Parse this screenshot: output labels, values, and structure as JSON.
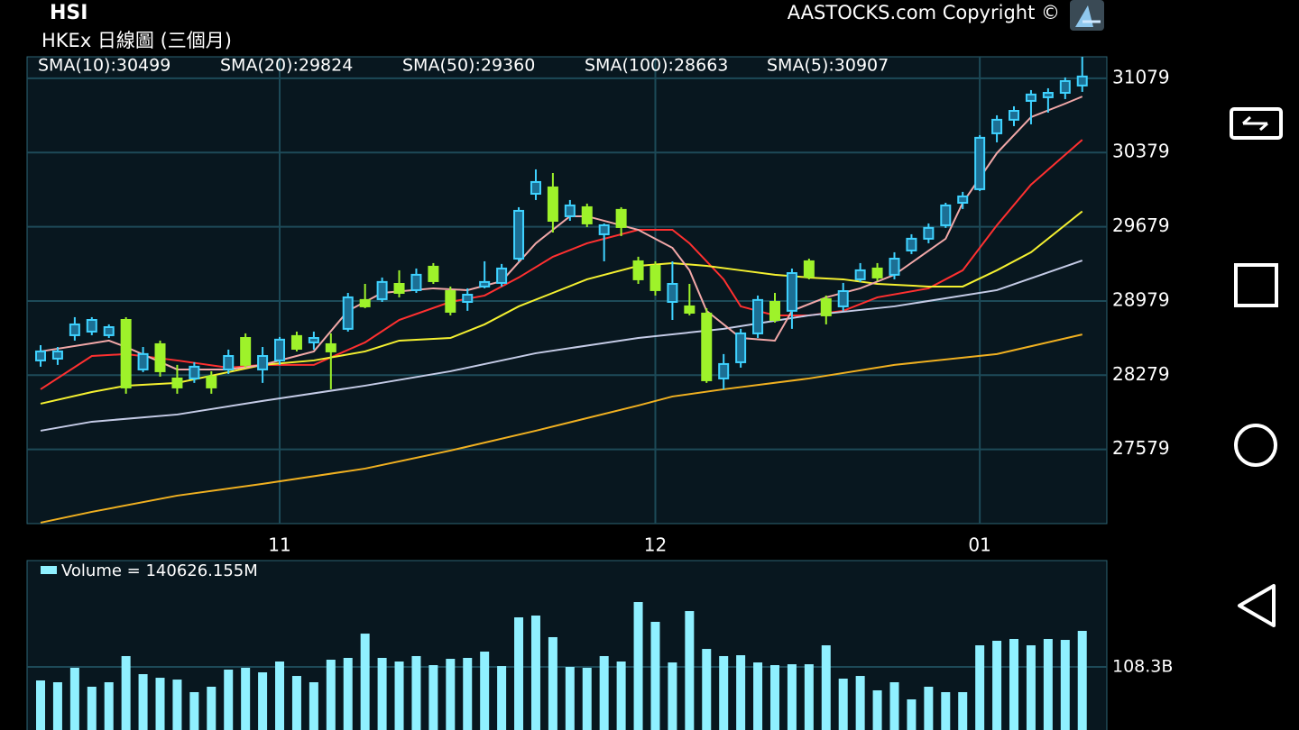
{
  "header": {
    "title": "HSI",
    "subtitle": "HKEx 日線圖 (三個月)",
    "copyright": "AASTOCKS.com Copyright ©"
  },
  "chart_data": [
    {
      "type": "candlestick",
      "categories": [
        null,
        null,
        null,
        null,
        null,
        null,
        null,
        null,
        null,
        null,
        null,
        null,
        null,
        null,
        "11",
        null,
        null,
        null,
        null,
        null,
        null,
        null,
        null,
        null,
        null,
        null,
        null,
        null,
        null,
        null,
        null,
        null,
        null,
        null,
        null,
        null,
        "12",
        null,
        null,
        null,
        null,
        null,
        null,
        null,
        null,
        null,
        null,
        null,
        null,
        null,
        null,
        null,
        null,
        null,
        null,
        "01",
        null,
        null,
        null,
        null,
        null,
        null
      ],
      "open": [
        28418,
        28435,
        28656,
        28690,
        28656,
        28800,
        28333,
        28571,
        28248,
        28248,
        28265,
        28333,
        28630,
        28333,
        28418,
        28648,
        28588,
        28571,
        28716,
        28988,
        28996,
        29140,
        29081,
        29302,
        29072,
        28970,
        29115,
        29149,
        29378,
        29990,
        30050,
        29778,
        29863,
        29608,
        29838,
        29353,
        29310,
        28970,
        28928,
        28860,
        28248,
        28401,
        28673,
        28970,
        28886,
        29353,
        28996,
        28928,
        29183,
        29285,
        29226,
        29455,
        29566,
        29693,
        29905,
        30033,
        30560,
        30688,
        30866,
        30900,
        30942,
        31011
      ],
      "high": [
        28562,
        28545,
        28826,
        28826,
        28758,
        28826,
        28545,
        28605,
        28376,
        28401,
        28316,
        28520,
        28673,
        28545,
        28639,
        28690,
        28690,
        28673,
        29055,
        29140,
        29200,
        29268,
        29285,
        29336,
        29115,
        29098,
        29353,
        29328,
        29863,
        30220,
        30186,
        29931,
        29897,
        29710,
        29863,
        29396,
        29353,
        29353,
        29140,
        28911,
        28478,
        28716,
        29030,
        29055,
        29285,
        29378,
        29030,
        29149,
        29336,
        29336,
        29438,
        29608,
        29710,
        29905,
        30008,
        30543,
        30730,
        30815,
        30968,
        30985,
        31087,
        31282
      ],
      "low": [
        28359,
        28376,
        28605,
        28656,
        28630,
        28104,
        28308,
        28265,
        28104,
        28206,
        28104,
        28290,
        28350,
        28206,
        28376,
        28503,
        28520,
        28146,
        28690,
        28911,
        28970,
        29013,
        29055,
        29140,
        28843,
        28886,
        29098,
        29115,
        29353,
        29931,
        29625,
        29735,
        29676,
        29353,
        29591,
        29140,
        29030,
        28800,
        28843,
        28206,
        28146,
        28350,
        28630,
        28775,
        28716,
        29183,
        28758,
        28886,
        29158,
        29166,
        29183,
        29421,
        29523,
        29668,
        29846,
        30016,
        30475,
        30628,
        30645,
        30755,
        30883,
        30951
      ],
      "close": [
        28503,
        28503,
        28758,
        28800,
        28732,
        28163,
        28478,
        28316,
        28163,
        28359,
        28163,
        28460,
        28376,
        28460,
        28614,
        28528,
        28630,
        28503,
        29013,
        28928,
        29158,
        29055,
        29226,
        29166,
        28877,
        29038,
        29158,
        29285,
        29829,
        30101,
        29735,
        29880,
        29710,
        29693,
        29676,
        29183,
        29081,
        29140,
        28868,
        28231,
        28384,
        28673,
        28988,
        28800,
        29242,
        29208,
        28843,
        29072,
        29268,
        29200,
        29378,
        29566,
        29668,
        29880,
        29965,
        30518,
        30688,
        30772,
        30926,
        30942,
        31053,
        31096
      ],
      "up_color": "#3fd2ff",
      "down_color": "#9ef22a",
      "lines": [
        {
          "name": "SMA(10):30499",
          "color": "#ff3030",
          "x": [
            0,
            3,
            5,
            8,
            11,
            13,
            16,
            19,
            21,
            24,
            26,
            28,
            30,
            32,
            35,
            37,
            38,
            40,
            41,
            43,
            45,
            47,
            49,
            52,
            54,
            56,
            58,
            61
          ],
          "values": [
            28146,
            28460,
            28478,
            28418,
            28350,
            28376,
            28376,
            28588,
            28800,
            28970,
            29030,
            29200,
            29396,
            29523,
            29650,
            29650,
            29523,
            29183,
            28928,
            28843,
            28843,
            28886,
            29013,
            29098,
            29268,
            29693,
            30076,
            30499
          ]
        },
        {
          "name": "SMA(20):29824",
          "color": "#f4f030",
          "x": [
            0,
            3,
            5,
            8,
            13,
            16,
            19,
            21,
            24,
            26,
            28,
            30,
            32,
            35,
            37,
            39,
            41,
            43,
            45,
            47,
            49,
            52,
            54,
            56,
            58,
            61
          ],
          "values": [
            28010,
            28120,
            28180,
            28206,
            28376,
            28418,
            28503,
            28605,
            28630,
            28758,
            28928,
            29055,
            29183,
            29310,
            29336,
            29310,
            29268,
            29226,
            29200,
            29183,
            29140,
            29115,
            29115,
            29268,
            29438,
            29824
          ]
        },
        {
          "name": "SMA(50):29360",
          "color": "#c4cbe6",
          "x": [
            0,
            3,
            8,
            13,
            19,
            24,
            29,
            35,
            40,
            45,
            50,
            56,
            61
          ],
          "values": [
            27755,
            27840,
            27908,
            28036,
            28180,
            28316,
            28486,
            28630,
            28716,
            28843,
            28928,
            29081,
            29360
          ]
        },
        {
          "name": "SMA(100):28663",
          "color": "#f0b020",
          "x": [
            0,
            3,
            8,
            13,
            19,
            24,
            29,
            35,
            37,
            40,
            45,
            50,
            56,
            61
          ],
          "values": [
            26888,
            26990,
            27143,
            27254,
            27398,
            27568,
            27755,
            27993,
            28078,
            28146,
            28248,
            28376,
            28478,
            28663
          ]
        },
        {
          "name": "SMA(5):30907",
          "color": "#f2a8a8",
          "x": [
            0,
            4,
            5,
            8,
            11,
            13,
            16,
            18,
            20,
            23,
            25,
            27,
            29,
            31,
            32,
            35,
            37,
            38,
            39,
            41,
            43,
            44,
            46,
            48,
            50,
            53,
            54,
            56,
            58,
            60,
            61
          ],
          "values": [
            28503,
            28605,
            28545,
            28333,
            28333,
            28376,
            28503,
            28886,
            29055,
            29098,
            29081,
            29166,
            29523,
            29778,
            29778,
            29650,
            29480,
            29268,
            28886,
            28630,
            28605,
            28886,
            29013,
            29098,
            29226,
            29566,
            29905,
            30373,
            30713,
            30840,
            30907
          ]
        }
      ],
      "ylim": [
        26879,
        31282
      ],
      "yticks": [
        27579,
        28279,
        28979,
        29679,
        30379,
        31079
      ],
      "grid": true
    },
    {
      "type": "bar",
      "series": [
        {
          "name": "Volume = 140626.155M",
          "color": "#8ff0ff",
          "values": [
            85.1,
            82.0,
            106.8,
            74.3,
            82.0,
            126.9,
            95.9,
            89.7,
            86.6,
            65.0,
            74.3,
            103.7,
            106.8,
            99.0,
            117.6,
            92.8,
            82.0,
            120.7,
            123.8,
            165.5,
            123.8,
            117.6,
            126.9,
            111.4,
            122.2,
            123.8,
            134.6,
            109.8,
            193.4,
            196.5,
            159.4,
            108.3,
            106.8,
            126.9,
            117.6,
            219.7,
            185.7,
            116.0,
            204.2,
            139.2,
            126.9,
            128.4,
            116.0,
            111.4,
            112.9,
            112.9,
            145.4,
            88.2,
            92.8,
            68.1,
            82.0,
            52.6,
            74.3,
            65.0,
            65.0,
            145.4,
            153.2,
            156.3,
            145.4,
            156.3,
            154.7,
            170.2
          ]
        }
      ],
      "ylim": [
        0,
        290.9
      ],
      "yticks": [
        {
          "value": 108.3,
          "label": "108.3B"
        }
      ],
      "grid": true
    }
  ]
}
